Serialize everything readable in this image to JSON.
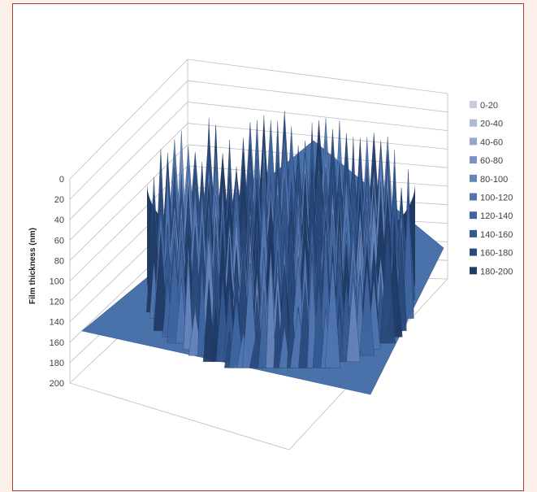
{
  "chart_data": {
    "type": "surface",
    "title": "",
    "xlabel": "",
    "ylabel": "Film thickness (nm)",
    "zlim": [
      0,
      200
    ],
    "z_ticks": [
      "0",
      "20",
      "40",
      "60",
      "80",
      "100",
      "120",
      "140",
      "160",
      "180",
      "200"
    ],
    "legend_position": "right",
    "legend": [
      {
        "label": "0-20",
        "color": "#c6cde0"
      },
      {
        "label": "20-40",
        "color": "#aeb9d6"
      },
      {
        "label": "40-60",
        "color": "#95a6cc"
      },
      {
        "label": "60-80",
        "color": "#7c93c2"
      },
      {
        "label": "80-100",
        "color": "#6584bb"
      },
      {
        "label": "100-120",
        "color": "#5075b0"
      },
      {
        "label": "120-140",
        "color": "#4066a1"
      },
      {
        "label": "140-160",
        "color": "#335891"
      },
      {
        "label": "160-180",
        "color": "#2a4a7d"
      },
      {
        "label": "180-200",
        "color": "#203b66"
      }
    ],
    "surface": {
      "description_values": "circular film region, thickness mostly 120-200 nm with spiky texture; outside region flat at ~145 nm level",
      "base_level": 145,
      "film_top_range": [
        0,
        140
      ]
    }
  }
}
